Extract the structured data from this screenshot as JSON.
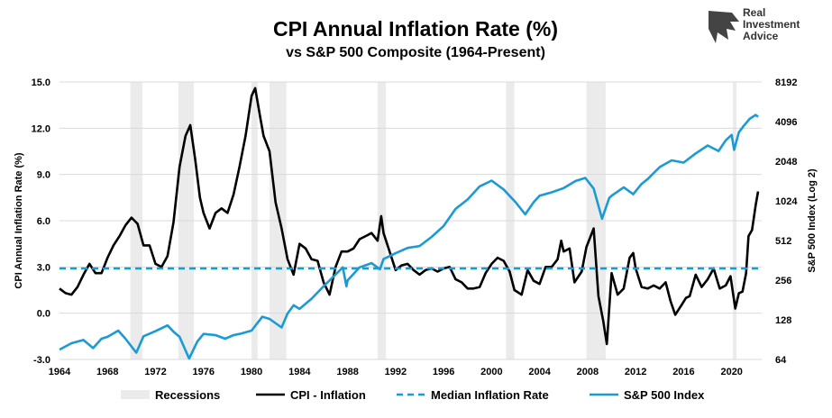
{
  "chart_data": {
    "type": "line",
    "title": "CPI Annual Inflation Rate (%)",
    "subtitle": "vs S&P 500 Composite (1964-Present)",
    "ylabel": "CPI Annual Inflation Rate (%)",
    "y2label": "S&P 500 Index (Log 2)",
    "xlim": [
      1964,
      2022.5
    ],
    "ylim": [
      -3.0,
      15.0
    ],
    "y2lim": [
      64,
      8192
    ],
    "y2scale": "log2",
    "x_ticks": [
      "1964",
      "1968",
      "1972",
      "1976",
      "1980",
      "1984",
      "1988",
      "1992",
      "1996",
      "2000",
      "2004",
      "2008",
      "2012",
      "2016",
      "2020"
    ],
    "y_ticks": [
      "-3.0",
      "0.0",
      "3.0",
      "6.0",
      "9.0",
      "12.0",
      "15.0"
    ],
    "y2_ticks": [
      "64",
      "128",
      "256",
      "512",
      "1024",
      "2048",
      "4096",
      "8192"
    ],
    "grid": "horizontal",
    "legend_position": "bottom",
    "recessions": [
      [
        1969.9,
        1970.9
      ],
      [
        1973.9,
        1975.2
      ],
      [
        1980.0,
        1980.5
      ],
      [
        1981.5,
        1982.9
      ],
      [
        1990.5,
        1991.2
      ],
      [
        2001.2,
        2001.9
      ],
      [
        2007.9,
        2009.5
      ],
      [
        2020.1,
        2020.4
      ]
    ],
    "series": [
      {
        "name": "CPI - Inflation",
        "color": "#000000",
        "axis": "left",
        "points": [
          [
            1964,
            1.6
          ],
          [
            1964.5,
            1.3
          ],
          [
            1965,
            1.2
          ],
          [
            1965.5,
            1.7
          ],
          [
            1966,
            2.5
          ],
          [
            1966.5,
            3.2
          ],
          [
            1967,
            2.6
          ],
          [
            1967.5,
            2.6
          ],
          [
            1968,
            3.6
          ],
          [
            1968.5,
            4.4
          ],
          [
            1969,
            5.0
          ],
          [
            1969.5,
            5.7
          ],
          [
            1970,
            6.2
          ],
          [
            1970.5,
            5.8
          ],
          [
            1971,
            4.4
          ],
          [
            1971.5,
            4.4
          ],
          [
            1972,
            3.2
          ],
          [
            1972.5,
            3.0
          ],
          [
            1973,
            3.7
          ],
          [
            1973.5,
            5.9
          ],
          [
            1974,
            9.5
          ],
          [
            1974.5,
            11.5
          ],
          [
            1974.9,
            12.2
          ],
          [
            1975.3,
            10.0
          ],
          [
            1975.7,
            7.5
          ],
          [
            1976,
            6.5
          ],
          [
            1976.5,
            5.5
          ],
          [
            1977,
            6.5
          ],
          [
            1977.5,
            6.8
          ],
          [
            1978,
            6.5
          ],
          [
            1978.5,
            7.7
          ],
          [
            1979,
            9.5
          ],
          [
            1979.5,
            11.5
          ],
          [
            1980,
            14.1
          ],
          [
            1980.3,
            14.6
          ],
          [
            1980.7,
            12.8
          ],
          [
            1981,
            11.5
          ],
          [
            1981.5,
            10.5
          ],
          [
            1982,
            7.2
          ],
          [
            1982.5,
            5.5
          ],
          [
            1983,
            3.5
          ],
          [
            1983.5,
            2.5
          ],
          [
            1984,
            4.5
          ],
          [
            1984.5,
            4.2
          ],
          [
            1985,
            3.5
          ],
          [
            1985.5,
            3.4
          ],
          [
            1986,
            2.0
          ],
          [
            1986.5,
            1.2
          ],
          [
            1987,
            3.0
          ],
          [
            1987.5,
            4.0
          ],
          [
            1988,
            4.0
          ],
          [
            1988.5,
            4.2
          ],
          [
            1989,
            4.8
          ],
          [
            1989.5,
            5.0
          ],
          [
            1990,
            5.2
          ],
          [
            1990.5,
            4.7
          ],
          [
            1990.8,
            6.3
          ],
          [
            1991,
            5.2
          ],
          [
            1991.5,
            4.0
          ],
          [
            1992,
            2.8
          ],
          [
            1992.5,
            3.1
          ],
          [
            1993,
            3.2
          ],
          [
            1993.5,
            2.8
          ],
          [
            1994,
            2.5
          ],
          [
            1994.5,
            2.8
          ],
          [
            1995,
            2.9
          ],
          [
            1995.5,
            2.7
          ],
          [
            1996,
            2.9
          ],
          [
            1996.5,
            3.0
          ],
          [
            1997,
            2.2
          ],
          [
            1997.5,
            2.0
          ],
          [
            1998,
            1.6
          ],
          [
            1998.5,
            1.6
          ],
          [
            1999,
            1.7
          ],
          [
            1999.5,
            2.6
          ],
          [
            2000,
            3.2
          ],
          [
            2000.5,
            3.6
          ],
          [
            2001,
            3.4
          ],
          [
            2001.5,
            2.7
          ],
          [
            2001.9,
            1.5
          ],
          [
            2002.5,
            1.2
          ],
          [
            2003,
            2.8
          ],
          [
            2003.5,
            2.1
          ],
          [
            2004,
            1.9
          ],
          [
            2004.5,
            3.0
          ],
          [
            2005,
            3.0
          ],
          [
            2005.5,
            3.5
          ],
          [
            2005.8,
            4.7
          ],
          [
            2006,
            4.0
          ],
          [
            2006.5,
            4.2
          ],
          [
            2006.9,
            2.0
          ],
          [
            2007.5,
            2.7
          ],
          [
            2007.9,
            4.3
          ],
          [
            2008.5,
            5.5
          ],
          [
            2008.9,
            1.1
          ],
          [
            2009.3,
            -0.5
          ],
          [
            2009.6,
            -2.0
          ],
          [
            2010,
            2.6
          ],
          [
            2010.5,
            1.2
          ],
          [
            2011,
            1.6
          ],
          [
            2011.5,
            3.6
          ],
          [
            2011.8,
            3.9
          ],
          [
            2012,
            2.9
          ],
          [
            2012.5,
            1.7
          ],
          [
            2013,
            1.6
          ],
          [
            2013.5,
            1.8
          ],
          [
            2014,
            1.6
          ],
          [
            2014.5,
            2.0
          ],
          [
            2014.9,
            0.8
          ],
          [
            2015.3,
            -0.1
          ],
          [
            2015.8,
            0.5
          ],
          [
            2016.2,
            1.0
          ],
          [
            2016.5,
            1.1
          ],
          [
            2017,
            2.5
          ],
          [
            2017.5,
            1.7
          ],
          [
            2018,
            2.2
          ],
          [
            2018.5,
            2.9
          ],
          [
            2019,
            1.6
          ],
          [
            2019.5,
            1.8
          ],
          [
            2019.9,
            2.4
          ],
          [
            2020.3,
            0.3
          ],
          [
            2020.6,
            1.3
          ],
          [
            2020.9,
            1.4
          ],
          [
            2021.2,
            2.6
          ],
          [
            2021.4,
            5.0
          ],
          [
            2021.7,
            5.4
          ],
          [
            2022,
            7.0
          ],
          [
            2022.2,
            7.9
          ]
        ]
      },
      {
        "name": "Median Inflation Rate",
        "color": "#1a9ad6",
        "axis": "left",
        "dashed": true,
        "value": 2.9
      },
      {
        "name": "S&P 500 Index",
        "color": "#1a9ad6",
        "axis": "right",
        "points": [
          [
            1964,
            76
          ],
          [
            1965,
            85
          ],
          [
            1966,
            90
          ],
          [
            1966.8,
            78
          ],
          [
            1967.5,
            92
          ],
          [
            1968,
            95
          ],
          [
            1968.9,
            106
          ],
          [
            1969.5,
            92
          ],
          [
            1970.4,
            72
          ],
          [
            1971,
            96
          ],
          [
            1972,
            105
          ],
          [
            1973,
            116
          ],
          [
            1973.5,
            104
          ],
          [
            1974,
            95
          ],
          [
            1974.8,
            65
          ],
          [
            1975.5,
            88
          ],
          [
            1976,
            100
          ],
          [
            1977,
            98
          ],
          [
            1977.8,
            92
          ],
          [
            1978.5,
            98
          ],
          [
            1979,
            100
          ],
          [
            1980,
            106
          ],
          [
            1980.9,
            135
          ],
          [
            1981.5,
            130
          ],
          [
            1982.5,
            112
          ],
          [
            1983,
            143
          ],
          [
            1983.5,
            165
          ],
          [
            1984,
            155
          ],
          [
            1985,
            185
          ],
          [
            1986,
            230
          ],
          [
            1987.6,
            320
          ],
          [
            1987.9,
            230
          ],
          [
            1988,
            255
          ],
          [
            1989,
            320
          ],
          [
            1990,
            345
          ],
          [
            1990.7,
            310
          ],
          [
            1991,
            370
          ],
          [
            1992,
            410
          ],
          [
            1993,
            450
          ],
          [
            1994,
            465
          ],
          [
            1995,
            545
          ],
          [
            1996,
            660
          ],
          [
            1997,
            890
          ],
          [
            1998,
            1050
          ],
          [
            1999,
            1320
          ],
          [
            2000,
            1460
          ],
          [
            2001,
            1250
          ],
          [
            2002,
            1000
          ],
          [
            2002.8,
            810
          ],
          [
            2003.5,
            1000
          ],
          [
            2004,
            1120
          ],
          [
            2005,
            1190
          ],
          [
            2006,
            1280
          ],
          [
            2007,
            1450
          ],
          [
            2007.8,
            1530
          ],
          [
            2008.5,
            1270
          ],
          [
            2009.2,
            750
          ],
          [
            2009.8,
            1080
          ],
          [
            2010,
            1120
          ],
          [
            2011,
            1300
          ],
          [
            2011.8,
            1150
          ],
          [
            2012.5,
            1380
          ],
          [
            2013,
            1500
          ],
          [
            2014,
            1850
          ],
          [
            2015,
            2080
          ],
          [
            2016,
            2000
          ],
          [
            2017,
            2350
          ],
          [
            2018,
            2700
          ],
          [
            2018.9,
            2450
          ],
          [
            2019.5,
            2950
          ],
          [
            2020,
            3250
          ],
          [
            2020.2,
            2500
          ],
          [
            2020.6,
            3400
          ],
          [
            2021,
            3800
          ],
          [
            2021.5,
            4300
          ],
          [
            2022,
            4600
          ],
          [
            2022.2,
            4450
          ]
        ]
      }
    ],
    "legend": [
      {
        "label": "Recessions",
        "swatch": "band",
        "color": "#ebebeb"
      },
      {
        "label": "CPI - Inflation",
        "swatch": "line",
        "color": "#000000"
      },
      {
        "label": "Median Inflation Rate",
        "swatch": "dashed",
        "color": "#1a9ad6"
      },
      {
        "label": "S&P 500 Index",
        "swatch": "line",
        "color": "#1a9ad6"
      }
    ]
  },
  "logo": {
    "line1": "Real",
    "line2": "Investment",
    "line3": "Advice"
  },
  "colors": {
    "recession_band": "#ebebeb",
    "grid": "#d9d9d9",
    "cpi": "#000000",
    "sp500": "#1a9ad6"
  }
}
